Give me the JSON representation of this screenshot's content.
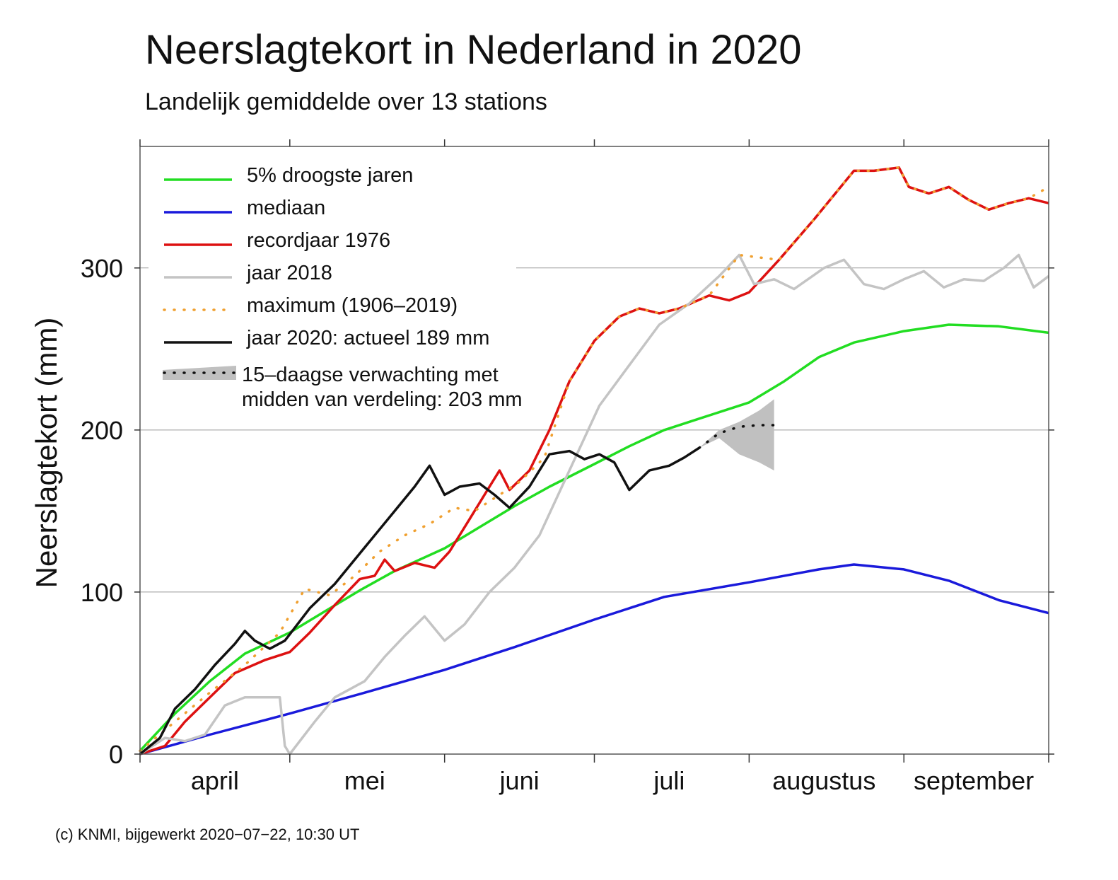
{
  "chart_data": {
    "type": "line",
    "title": "Neerslagtekort in Nederland in 2020",
    "subtitle": "Landelijk gemiddelde over 13 stations",
    "ylabel": "Neerslagtekort (mm)",
    "ylim": [
      0,
      375
    ],
    "yticks": [
      0,
      100,
      200,
      300
    ],
    "xlim": [
      "2020-04-01",
      "2020-09-30"
    ],
    "x_month_boundaries": [
      "2020-04-01",
      "2020-05-01",
      "2020-06-01",
      "2020-07-01",
      "2020-08-01",
      "2020-09-01",
      "2020-09-30"
    ],
    "months": [
      {
        "label": "april",
        "center": "2020-04-16"
      },
      {
        "label": "mei",
        "center": "2020-05-16"
      },
      {
        "label": "juni",
        "center": "2020-06-16"
      },
      {
        "label": "juli",
        "center": "2020-07-16"
      },
      {
        "label": "augustus",
        "center": "2020-08-16"
      },
      {
        "label": "september",
        "center": "2020-09-15"
      }
    ],
    "grid": "horizontal",
    "legend_position": "top-left",
    "series": [
      {
        "name": "5% droogste jaren",
        "color": "#22dd22",
        "style": "solid",
        "points": [
          [
            "2020-04-01",
            2
          ],
          [
            "2020-04-08",
            25
          ],
          [
            "2020-04-15",
            45
          ],
          [
            "2020-04-22",
            62
          ],
          [
            "2020-05-01",
            75
          ],
          [
            "2020-05-08",
            88
          ],
          [
            "2020-05-15",
            101
          ],
          [
            "2020-05-22",
            113
          ],
          [
            "2020-06-01",
            127
          ],
          [
            "2020-06-08",
            140
          ],
          [
            "2020-06-15",
            153
          ],
          [
            "2020-06-22",
            165
          ],
          [
            "2020-07-01",
            179
          ],
          [
            "2020-07-08",
            190
          ],
          [
            "2020-07-15",
            200
          ],
          [
            "2020-07-22",
            207
          ],
          [
            "2020-08-01",
            217
          ],
          [
            "2020-08-08",
            230
          ],
          [
            "2020-08-15",
            245
          ],
          [
            "2020-08-22",
            254
          ],
          [
            "2020-09-01",
            261
          ],
          [
            "2020-09-10",
            265
          ],
          [
            "2020-09-20",
            264
          ],
          [
            "2020-09-30",
            260
          ]
        ]
      },
      {
        "name": "mediaan",
        "color": "#1a1adb",
        "style": "solid",
        "points": [
          [
            "2020-04-01",
            0
          ],
          [
            "2020-04-15",
            12
          ],
          [
            "2020-05-01",
            25
          ],
          [
            "2020-05-15",
            37
          ],
          [
            "2020-06-01",
            52
          ],
          [
            "2020-06-15",
            66
          ],
          [
            "2020-07-01",
            83
          ],
          [
            "2020-07-15",
            97
          ],
          [
            "2020-08-01",
            106
          ],
          [
            "2020-08-15",
            114
          ],
          [
            "2020-08-22",
            117
          ],
          [
            "2020-09-01",
            114
          ],
          [
            "2020-09-10",
            107
          ],
          [
            "2020-09-20",
            95
          ],
          [
            "2020-09-30",
            87
          ]
        ]
      },
      {
        "name": "recordjaar 1976",
        "color": "#dd1111",
        "style": "solid",
        "points": [
          [
            "2020-04-01",
            0
          ],
          [
            "2020-04-06",
            5
          ],
          [
            "2020-04-10",
            20
          ],
          [
            "2020-04-15",
            35
          ],
          [
            "2020-04-20",
            50
          ],
          [
            "2020-04-26",
            58
          ],
          [
            "2020-05-01",
            63
          ],
          [
            "2020-05-05",
            75
          ],
          [
            "2020-05-10",
            92
          ],
          [
            "2020-05-15",
            108
          ],
          [
            "2020-05-18",
            110
          ],
          [
            "2020-05-20",
            120
          ],
          [
            "2020-05-22",
            113
          ],
          [
            "2020-05-26",
            118
          ],
          [
            "2020-05-30",
            115
          ],
          [
            "2020-06-02",
            125
          ],
          [
            "2020-06-06",
            145
          ],
          [
            "2020-06-10",
            165
          ],
          [
            "2020-06-12",
            175
          ],
          [
            "2020-06-14",
            163
          ],
          [
            "2020-06-18",
            175
          ],
          [
            "2020-06-22",
            200
          ],
          [
            "2020-06-26",
            230
          ],
          [
            "2020-07-01",
            255
          ],
          [
            "2020-07-06",
            270
          ],
          [
            "2020-07-10",
            275
          ],
          [
            "2020-07-14",
            272
          ],
          [
            "2020-07-18",
            275
          ],
          [
            "2020-07-24",
            283
          ],
          [
            "2020-07-28",
            280
          ],
          [
            "2020-08-01",
            285
          ],
          [
            "2020-08-07",
            305
          ],
          [
            "2020-08-14",
            330
          ],
          [
            "2020-08-22",
            360
          ],
          [
            "2020-08-26",
            360
          ],
          [
            "2020-08-31",
            362
          ],
          [
            "2020-09-02",
            350
          ],
          [
            "2020-09-06",
            346
          ],
          [
            "2020-09-10",
            350
          ],
          [
            "2020-09-14",
            342
          ],
          [
            "2020-09-18",
            336
          ],
          [
            "2020-09-22",
            340
          ],
          [
            "2020-09-26",
            343
          ],
          [
            "2020-09-30",
            340
          ]
        ]
      },
      {
        "name": "jaar 2018",
        "color": "#c4c4c4",
        "style": "solid",
        "points": [
          [
            "2020-04-01",
            0
          ],
          [
            "2020-04-06",
            10
          ],
          [
            "2020-04-10",
            8
          ],
          [
            "2020-04-14",
            12
          ],
          [
            "2020-04-18",
            30
          ],
          [
            "2020-04-22",
            35
          ],
          [
            "2020-04-26",
            35
          ],
          [
            "2020-04-29",
            35
          ],
          [
            "2020-04-30",
            5
          ],
          [
            "2020-05-01",
            0
          ],
          [
            "2020-05-06",
            20
          ],
          [
            "2020-05-10",
            35
          ],
          [
            "2020-05-13",
            40
          ],
          [
            "2020-05-16",
            45
          ],
          [
            "2020-05-20",
            60
          ],
          [
            "2020-05-24",
            73
          ],
          [
            "2020-05-28",
            85
          ],
          [
            "2020-06-01",
            70
          ],
          [
            "2020-06-05",
            80
          ],
          [
            "2020-06-10",
            100
          ],
          [
            "2020-06-15",
            115
          ],
          [
            "2020-06-20",
            135
          ],
          [
            "2020-06-26",
            175
          ],
          [
            "2020-07-02",
            215
          ],
          [
            "2020-07-08",
            240
          ],
          [
            "2020-07-14",
            265
          ],
          [
            "2020-07-20",
            278
          ],
          [
            "2020-07-26",
            295
          ],
          [
            "2020-07-30",
            308
          ],
          [
            "2020-08-02",
            290
          ],
          [
            "2020-08-06",
            293
          ],
          [
            "2020-08-10",
            287
          ],
          [
            "2020-08-16",
            300
          ],
          [
            "2020-08-20",
            305
          ],
          [
            "2020-08-24",
            290
          ],
          [
            "2020-08-28",
            287
          ],
          [
            "2020-09-01",
            293
          ],
          [
            "2020-09-05",
            298
          ],
          [
            "2020-09-09",
            288
          ],
          [
            "2020-09-13",
            293
          ],
          [
            "2020-09-17",
            292
          ],
          [
            "2020-09-21",
            300
          ],
          [
            "2020-09-24",
            308
          ],
          [
            "2020-09-27",
            288
          ],
          [
            "2020-09-30",
            295
          ]
        ]
      },
      {
        "name": "maximum (1906–2019)",
        "color": "#f0a030",
        "style": "dotted",
        "points": [
          [
            "2020-04-01",
            2
          ],
          [
            "2020-04-08",
            20
          ],
          [
            "2020-04-15",
            38
          ],
          [
            "2020-04-22",
            55
          ],
          [
            "2020-04-29",
            75
          ],
          [
            "2020-05-04",
            102
          ],
          [
            "2020-05-09",
            98
          ],
          [
            "2020-05-14",
            110
          ],
          [
            "2020-05-19",
            125
          ],
          [
            "2020-05-24",
            135
          ],
          [
            "2020-05-29",
            142
          ],
          [
            "2020-06-03",
            152
          ],
          [
            "2020-06-07",
            150
          ],
          [
            "2020-06-11",
            158
          ],
          [
            "2020-06-16",
            168
          ],
          [
            "2020-06-21",
            183
          ],
          [
            "2020-06-26",
            230
          ],
          [
            "2020-07-01",
            255
          ],
          [
            "2020-07-06",
            270
          ],
          [
            "2020-07-10",
            275
          ],
          [
            "2020-07-14",
            272
          ],
          [
            "2020-07-18",
            275
          ],
          [
            "2020-07-24",
            283
          ],
          [
            "2020-07-30",
            308
          ],
          [
            "2020-08-07",
            305
          ],
          [
            "2020-08-14",
            330
          ],
          [
            "2020-08-22",
            360
          ],
          [
            "2020-08-26",
            360
          ],
          [
            "2020-08-31",
            362
          ],
          [
            "2020-09-02",
            350
          ],
          [
            "2020-09-06",
            346
          ],
          [
            "2020-09-10",
            350
          ],
          [
            "2020-09-14",
            342
          ],
          [
            "2020-09-18",
            336
          ],
          [
            "2020-09-22",
            340
          ],
          [
            "2020-09-26",
            343
          ],
          [
            "2020-09-30",
            350
          ]
        ]
      },
      {
        "name": "jaar 2020: actueel 189 mm",
        "color": "#111111",
        "style": "solid",
        "points": [
          [
            "2020-04-01",
            0
          ],
          [
            "2020-04-05",
            10
          ],
          [
            "2020-04-08",
            28
          ],
          [
            "2020-04-12",
            40
          ],
          [
            "2020-04-16",
            55
          ],
          [
            "2020-04-20",
            68
          ],
          [
            "2020-04-22",
            76
          ],
          [
            "2020-04-24",
            70
          ],
          [
            "2020-04-27",
            65
          ],
          [
            "2020-04-30",
            70
          ],
          [
            "2020-05-05",
            90
          ],
          [
            "2020-05-10",
            105
          ],
          [
            "2020-05-14",
            120
          ],
          [
            "2020-05-18",
            135
          ],
          [
            "2020-05-22",
            150
          ],
          [
            "2020-05-26",
            165
          ],
          [
            "2020-05-29",
            178
          ],
          [
            "2020-06-01",
            160
          ],
          [
            "2020-06-04",
            165
          ],
          [
            "2020-06-08",
            167
          ],
          [
            "2020-06-11",
            160
          ],
          [
            "2020-06-14",
            152
          ],
          [
            "2020-06-18",
            165
          ],
          [
            "2020-06-22",
            185
          ],
          [
            "2020-06-26",
            187
          ],
          [
            "2020-06-29",
            182
          ],
          [
            "2020-07-02",
            185
          ],
          [
            "2020-07-05",
            180
          ],
          [
            "2020-07-08",
            163
          ],
          [
            "2020-07-12",
            175
          ],
          [
            "2020-07-16",
            178
          ],
          [
            "2020-07-19",
            183
          ],
          [
            "2020-07-22",
            189
          ]
        ]
      },
      {
        "name": "15–daagse verwachting met midden van verdeling: 203 mm",
        "color": "#111111",
        "style": "dotted",
        "band_color": "#c0c0c0",
        "points": [
          [
            "2020-07-22",
            189
          ],
          [
            "2020-07-26",
            198
          ],
          [
            "2020-07-30",
            202
          ],
          [
            "2020-08-03",
            203
          ],
          [
            "2020-08-06",
            203
          ]
        ],
        "band_low": [
          [
            "2020-07-26",
            195
          ],
          [
            "2020-07-30",
            185
          ],
          [
            "2020-08-03",
            180
          ],
          [
            "2020-08-06",
            175
          ]
        ],
        "band_high": [
          [
            "2020-07-26",
            200
          ],
          [
            "2020-07-30",
            205
          ],
          [
            "2020-08-03",
            212
          ],
          [
            "2020-08-06",
            219
          ]
        ]
      }
    ]
  },
  "legend": [
    {
      "label": "5% droogste jaren",
      "color": "#22dd22",
      "style": "solid"
    },
    {
      "label": "mediaan",
      "color": "#1a1adb",
      "style": "solid"
    },
    {
      "label": "recordjaar 1976",
      "color": "#dd1111",
      "style": "solid"
    },
    {
      "label": "jaar 2018",
      "color": "#c4c4c4",
      "style": "solid"
    },
    {
      "label": "maximum (1906–2019)",
      "color": "#f0a030",
      "style": "dotted"
    },
    {
      "label": "jaar 2020: actueel 189 mm",
      "color": "#111111",
      "style": "solid"
    },
    {
      "label": "15–daagse verwachting met",
      "label2": "midden van verdeling: 203 mm",
      "color": "#111111",
      "style": "band"
    }
  ],
  "footer": "(c) KNMI, bijgewerkt 2020−07−22, 10:30 UT"
}
